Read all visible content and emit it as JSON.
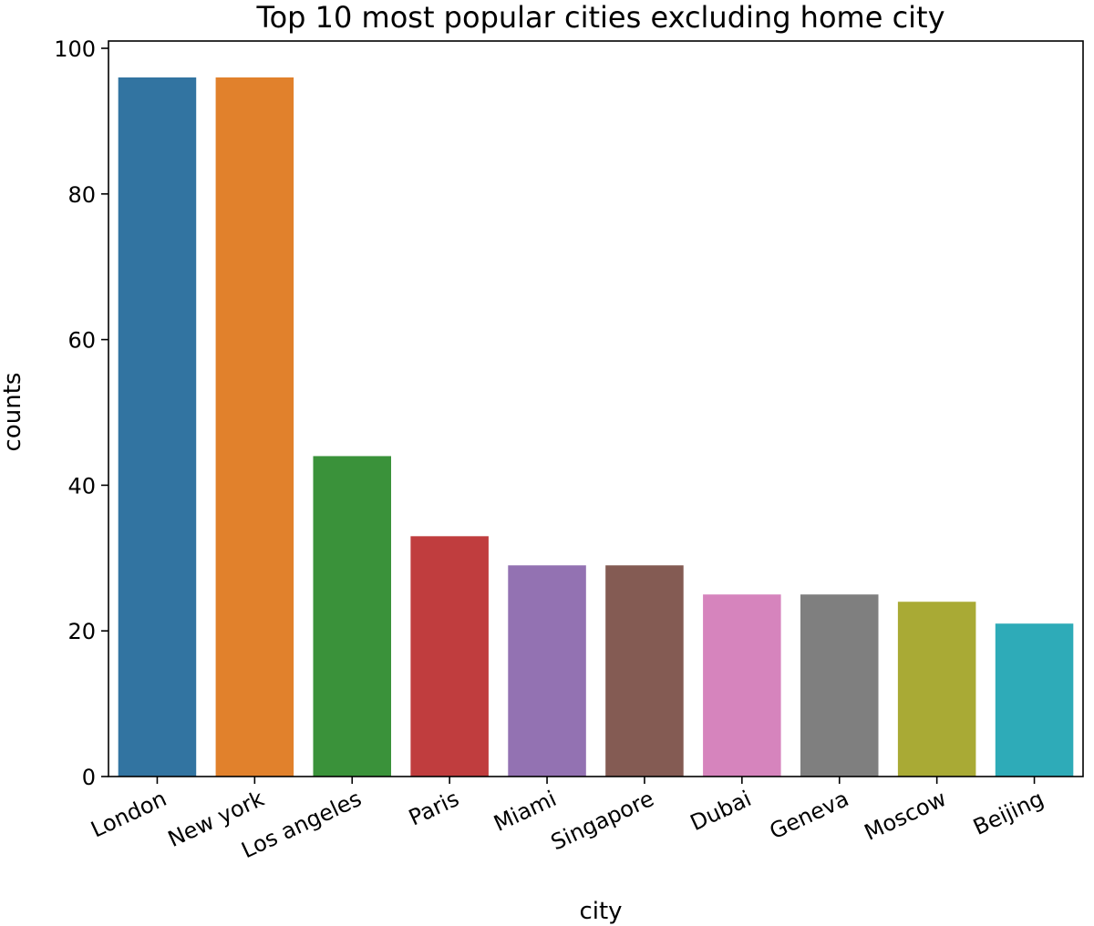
{
  "chart_data": {
    "type": "bar",
    "title": "Top 10 most popular cities excluding home city",
    "xlabel": "city",
    "ylabel": "counts",
    "categories": [
      "London",
      "New york",
      "Los angeles",
      "Paris",
      "Miami",
      "Singapore",
      "Dubai",
      "Geneva",
      "Moscow",
      "Beijing"
    ],
    "values": [
      96,
      96,
      44,
      33,
      29,
      29,
      25,
      25,
      24,
      21
    ],
    "colors": [
      "#3274a1",
      "#e1812c",
      "#3a923a",
      "#c03d3e",
      "#9372b2",
      "#845b53",
      "#d684bd",
      "#7f7f7f",
      "#a9aa35",
      "#2eabb8"
    ],
    "ylim": [
      0,
      101
    ],
    "yticks": [
      0,
      20,
      40,
      60,
      80,
      100
    ],
    "grid": false,
    "legend": "none"
  }
}
